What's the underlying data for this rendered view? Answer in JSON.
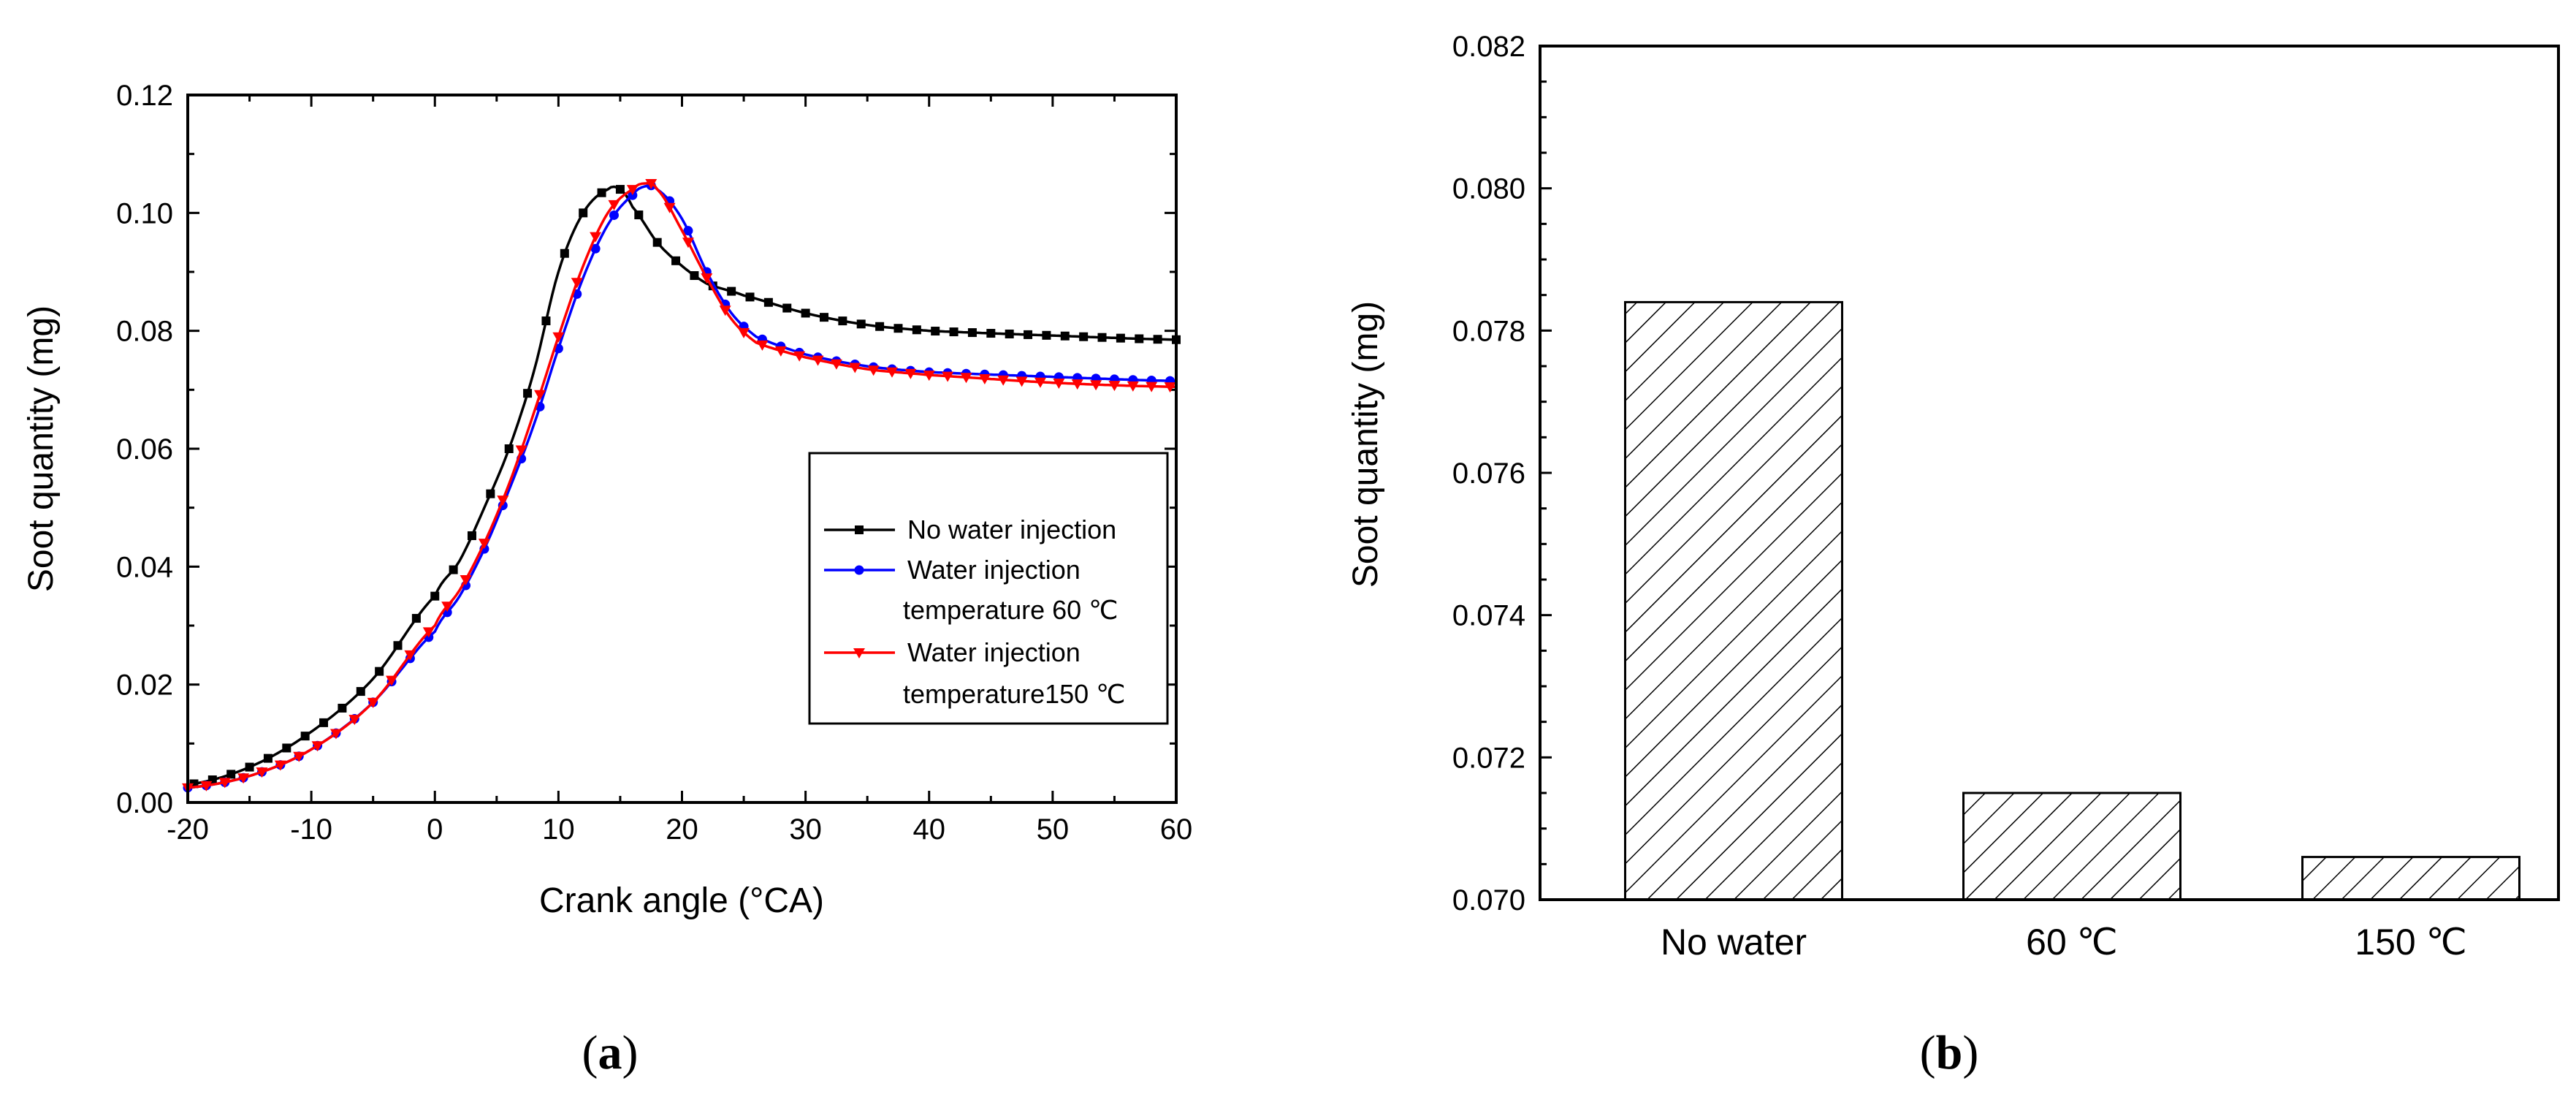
{
  "chart_data": [
    {
      "id": "a",
      "type": "line",
      "panel_label": "a",
      "xlabel": "Crank angle (°CA)",
      "ylabel": "Soot quantity (mg)",
      "xlim": [
        -20,
        60
      ],
      "ylim": [
        0,
        0.12
      ],
      "xticks": [
        "-20",
        "-10",
        "0",
        "10",
        "20",
        "30",
        "40",
        "50",
        "60"
      ],
      "yticks": [
        "0.00",
        "0.02",
        "0.04",
        "0.06",
        "0.08",
        "0.10",
        "0.12"
      ],
      "legend_position": "center-right",
      "legend": [
        "No water injection",
        "Water injection",
        "temperature 60 ℃",
        "Water injection",
        "temperature150 ℃"
      ],
      "series": [
        {
          "name": "No water injection",
          "color": "#000000",
          "marker": "square",
          "points": [
            [
              -20,
              0.003
            ],
            [
              -15,
              0.006
            ],
            [
              -10,
              0.012
            ],
            [
              -5,
              0.021
            ],
            [
              0,
              0.035
            ],
            [
              2,
              0.041
            ],
            [
              4,
              0.05
            ],
            [
              6,
              0.06
            ],
            [
              8,
              0.073
            ],
            [
              10,
              0.09
            ],
            [
              12,
              0.1
            ],
            [
              14,
              0.104
            ],
            [
              15,
              0.104
            ],
            [
              16,
              0.101
            ],
            [
              18,
              0.095
            ],
            [
              20,
              0.091
            ],
            [
              22,
              0.088
            ],
            [
              25,
              0.086
            ],
            [
              30,
              0.083
            ],
            [
              35,
              0.081
            ],
            [
              40,
              0.08
            ],
            [
              50,
              0.0792
            ],
            [
              60,
              0.0785
            ]
          ]
        },
        {
          "name": "Water injection temperature 60 ℃",
          "color": "#0000FF",
          "marker": "circle",
          "points": [
            [
              -20,
              0.0025
            ],
            [
              -15,
              0.0045
            ],
            [
              -10,
              0.009
            ],
            [
              -5,
              0.017
            ],
            [
              0,
              0.029
            ],
            [
              2,
              0.035
            ],
            [
              4,
              0.043
            ],
            [
              6,
              0.053
            ],
            [
              8,
              0.064
            ],
            [
              10,
              0.077
            ],
            [
              12,
              0.089
            ],
            [
              14,
              0.098
            ],
            [
              16,
              0.103
            ],
            [
              17,
              0.1045
            ],
            [
              18,
              0.104
            ],
            [
              20,
              0.099
            ],
            [
              22,
              0.09
            ],
            [
              24,
              0.083
            ],
            [
              26,
              0.079
            ],
            [
              30,
              0.076
            ],
            [
              35,
              0.074
            ],
            [
              40,
              0.073
            ],
            [
              50,
              0.0722
            ],
            [
              60,
              0.0715
            ]
          ]
        },
        {
          "name": "Water injection temperature150 ℃",
          "color": "#FF0000",
          "marker": "triangle-down",
          "points": [
            [
              -20,
              0.0025
            ],
            [
              -15,
              0.0045
            ],
            [
              -10,
              0.009
            ],
            [
              -5,
              0.017
            ],
            [
              0,
              0.03
            ],
            [
              2,
              0.036
            ],
            [
              4,
              0.044
            ],
            [
              6,
              0.054
            ],
            [
              8,
              0.066
            ],
            [
              10,
              0.079
            ],
            [
              12,
              0.091
            ],
            [
              14,
              0.1
            ],
            [
              16,
              0.104
            ],
            [
              17,
              0.105
            ],
            [
              18,
              0.104
            ],
            [
              20,
              0.097
            ],
            [
              22,
              0.089
            ],
            [
              24,
              0.082
            ],
            [
              26,
              0.078
            ],
            [
              30,
              0.0755
            ],
            [
              35,
              0.0735
            ],
            [
              40,
              0.0725
            ],
            [
              50,
              0.0712
            ],
            [
              60,
              0.0705
            ]
          ]
        }
      ]
    },
    {
      "id": "b",
      "type": "bar",
      "panel_label": "b",
      "ylabel": "Soot quantity  (mg)",
      "ylim": [
        0.07,
        0.082
      ],
      "yticks": [
        "0.070",
        "0.072",
        "0.074",
        "0.076",
        "0.078",
        "0.080",
        "0.082"
      ],
      "categories": [
        "No water",
        "60 ℃",
        "150 ℃"
      ],
      "values": [
        0.0784,
        0.0715,
        0.0706
      ],
      "bar_fill": "hatched"
    }
  ]
}
